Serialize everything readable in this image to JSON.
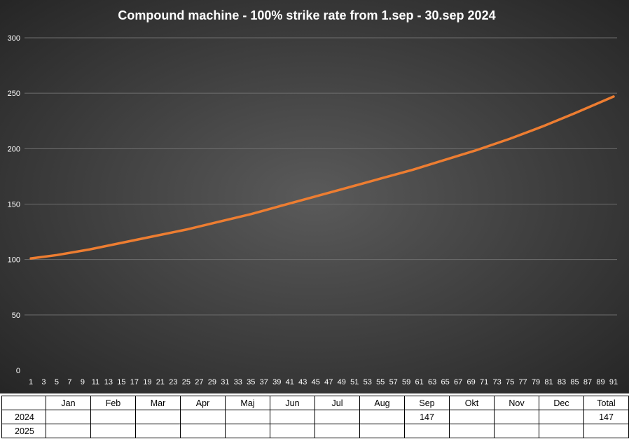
{
  "chart_data": {
    "type": "line",
    "title": "Compound machine - 100% strike rate from 1.sep - 30.sep 2024",
    "xlabel": "",
    "ylabel": "",
    "ylim": [
      0,
      300
    ],
    "yticks": [
      0,
      50,
      100,
      150,
      200,
      250,
      300
    ],
    "xticks": [
      1,
      3,
      5,
      7,
      9,
      11,
      13,
      15,
      17,
      19,
      21,
      23,
      25,
      27,
      29,
      31,
      33,
      35,
      37,
      39,
      41,
      43,
      45,
      47,
      49,
      51,
      53,
      55,
      57,
      59,
      61,
      63,
      65,
      67,
      69,
      71,
      73,
      75,
      77,
      79,
      81,
      83,
      85,
      87,
      89,
      91
    ],
    "grid": true,
    "legend": "none",
    "series": [
      {
        "x": [
          1,
          5,
          10,
          15,
          20,
          25,
          30,
          35,
          40,
          45,
          50,
          55,
          60,
          65,
          70,
          75,
          80,
          85,
          91
        ],
        "values": [
          101,
          104,
          109,
          115,
          121,
          127,
          134,
          141,
          149,
          157,
          165,
          173,
          181,
          190,
          199,
          209,
          220,
          232,
          247
        ]
      }
    ]
  },
  "colors": {
    "line": "#ED7D31",
    "bg_center": "#5a5a5a",
    "bg_edge": "#262626",
    "gridline": "#6e6e6e",
    "text": "#ffffff"
  },
  "table": {
    "headers": [
      "",
      "Jan",
      "Feb",
      "Mar",
      "Apr",
      "Maj",
      "Jun",
      "Jul",
      "Aug",
      "Sep",
      "Okt",
      "Nov",
      "Dec",
      "Total"
    ],
    "rows": [
      [
        "2024",
        "",
        "",
        "",
        "",
        "",
        "",
        "",
        "",
        "147",
        "",
        "",
        "",
        "147"
      ],
      [
        "2025",
        "",
        "",
        "",
        "",
        "",
        "",
        "",
        "",
        "",
        "",
        "",
        "",
        ""
      ]
    ]
  }
}
